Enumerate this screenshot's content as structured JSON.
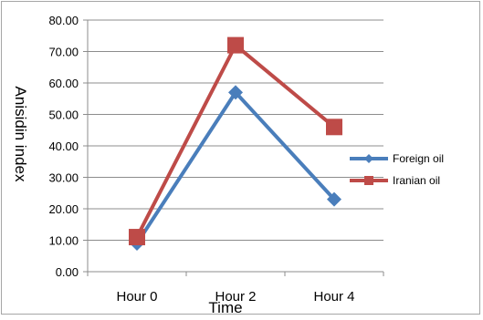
{
  "chart_data": {
    "type": "line",
    "title": "",
    "xlabel": "Time",
    "ylabel": "Anisidin index",
    "categories": [
      "Hour 0",
      "Hour 2",
      "Hour 4"
    ],
    "ylim": [
      0,
      80
    ],
    "ytick_labels": [
      "0.00",
      "10.00",
      "20.00",
      "30.00",
      "40.00",
      "50.00",
      "60.00",
      "70.00",
      "80.00"
    ],
    "grid": true,
    "legend_position": "right",
    "series": [
      {
        "name": "Foreign oil",
        "values": [
          9,
          57,
          23
        ],
        "color": "#4a7ebb",
        "marker": "diamond"
      },
      {
        "name": "Iranian oil",
        "values": [
          11,
          72,
          46
        ],
        "color": "#be4b48",
        "marker": "square"
      }
    ]
  }
}
